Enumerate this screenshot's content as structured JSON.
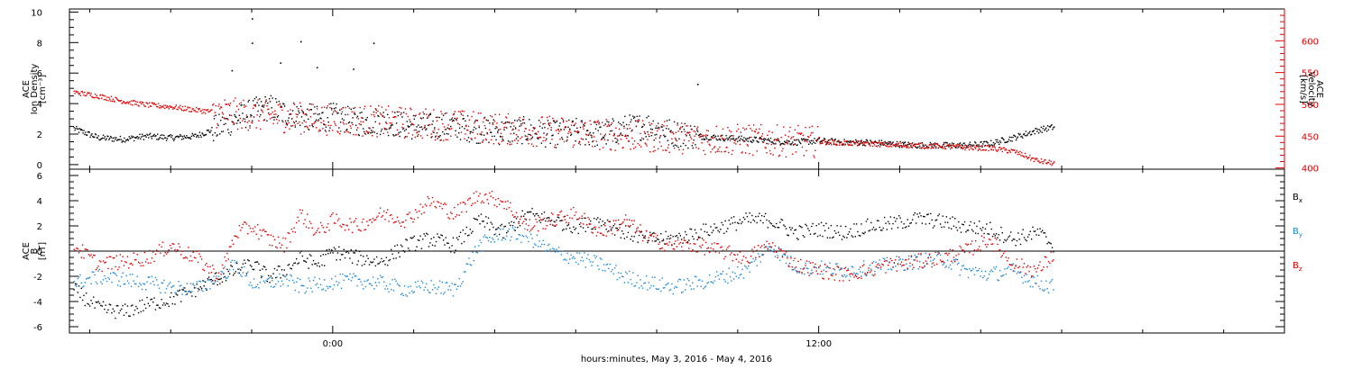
{
  "xlabel": "hours:minutes, May  3, 2016 - May  4, 2016",
  "colors": {
    "black": "#000000",
    "red": "#e00000",
    "blue": "#1e88d8",
    "axis": "#000000"
  },
  "chart_data": [
    {
      "type": "scatter",
      "panel": "top",
      "x_unit": "hours from 2016-05-03 00:00",
      "xlim": [
        -6.5,
        23.5
      ],
      "x_ticks": [
        0,
        12
      ],
      "x_tick_labels": [
        "0:00",
        "12:00"
      ],
      "left_axis": {
        "ylabel_lines": [
          "ACE",
          "Ion Density",
          "[cm⁻³]"
        ],
        "ylim": [
          -0.3,
          10.2
        ],
        "ticks": [
          0,
          2,
          4,
          6,
          8,
          10
        ],
        "color": "#000000"
      },
      "right_axis": {
        "ylabel_lines": [
          "ACE",
          "Velocity",
          "[km/s]"
        ],
        "ylim": [
          398,
          650
        ],
        "ticks": [
          400,
          450,
          500,
          550,
          600
        ],
        "color": "#e00000"
      },
      "series": [
        {
          "color": "#000000",
          "axis": "left",
          "x": [
            -6.4,
            -5.8,
            -5.2,
            -4.6,
            -4.0,
            -3.4,
            -2.8,
            -2.4,
            -2.0,
            -1.6,
            -1.2,
            -0.8,
            -0.4,
            0.0,
            0.6,
            1.2,
            1.8,
            2.4,
            3.0,
            3.6,
            4.2,
            4.8,
            5.4,
            6.0,
            6.6,
            7.2,
            7.8,
            8.4,
            9.0,
            9.6,
            10.2,
            10.8,
            11.4,
            12.0,
            12.6,
            13.2,
            13.8,
            14.4,
            15.0,
            15.6,
            16.2,
            16.8,
            17.4,
            17.8
          ],
          "y": [
            2.4,
            1.8,
            1.7,
            1.9,
            1.8,
            1.9,
            2.5,
            3.0,
            3.5,
            3.8,
            3.4,
            3.3,
            3.0,
            3.2,
            2.8,
            2.9,
            2.6,
            2.5,
            2.6,
            2.3,
            2.2,
            2.3,
            2.0,
            2.2,
            2.0,
            2.4,
            2.6,
            2.1,
            1.9,
            1.8,
            1.7,
            1.6,
            1.5,
            1.6,
            1.5,
            1.5,
            1.4,
            1.3,
            1.3,
            1.3,
            1.4,
            1.8,
            2.3,
            2.5
          ]
        },
        {
          "color": "#e00000",
          "axis": "right",
          "x": [
            -6.4,
            -5.8,
            -5.2,
            -4.6,
            -4.0,
            -3.4,
            -2.8,
            -2.4,
            -2.0,
            -1.6,
            -1.2,
            -0.8,
            -0.4,
            0.0,
            0.6,
            1.2,
            1.8,
            2.4,
            3.0,
            3.6,
            4.2,
            4.8,
            5.4,
            6.0,
            6.6,
            7.2,
            7.8,
            8.4,
            9.0,
            9.6,
            10.2,
            10.8,
            11.4,
            12.0,
            12.6,
            13.2,
            13.8,
            14.4,
            15.0,
            15.6,
            16.2,
            16.8,
            17.4,
            17.8
          ],
          "y": [
            520,
            514,
            506,
            500,
            497,
            492,
            488,
            486,
            484,
            483,
            481,
            479,
            478,
            477,
            476,
            474,
            472,
            470,
            468,
            465,
            462,
            460,
            458,
            456,
            454,
            452,
            450,
            449,
            447,
            446,
            445,
            444,
            443,
            442,
            440,
            439,
            437,
            436,
            435,
            433,
            432,
            427,
            412,
            408
          ]
        }
      ],
      "spikes": [
        {
          "x": -2.0,
          "y": 9.6
        },
        {
          "x": -2.0,
          "y": 8.0
        },
        {
          "x": -0.8,
          "y": 8.1
        },
        {
          "x": 1.0,
          "y": 8.0
        },
        {
          "x": -2.5,
          "y": 6.2
        },
        {
          "x": -1.3,
          "y": 6.7
        },
        {
          "x": -0.4,
          "y": 6.4
        },
        {
          "x": 0.5,
          "y": 6.3
        },
        {
          "x": 9.0,
          "y": 5.3
        }
      ]
    },
    {
      "type": "scatter",
      "panel": "bottom",
      "x_unit": "hours from 2016-05-03 00:00",
      "xlim": [
        -6.5,
        23.5
      ],
      "x_ticks": [
        0,
        12
      ],
      "x_tick_labels": [
        "0:00",
        "12:00"
      ],
      "ylabel_lines": [
        "ACE",
        "B",
        "[nT]"
      ],
      "ylim": [
        -6.5,
        6.5
      ],
      "ticks": [
        -6,
        -4,
        -2,
        0,
        2,
        4,
        6
      ],
      "zero_line": true,
      "legend": [
        {
          "label": "B",
          "sub": "x",
          "color": "#000000"
        },
        {
          "label": "B",
          "sub": "y",
          "color": "#1e88d8"
        },
        {
          "label": "B",
          "sub": "z",
          "color": "#e00000"
        }
      ],
      "series": [
        {
          "color": "#000000",
          "x": [
            -6.4,
            -5.8,
            -5.2,
            -4.6,
            -4.0,
            -3.4,
            -2.8,
            -2.4,
            -2.0,
            -1.6,
            -1.2,
            -0.8,
            -0.4,
            0.0,
            0.6,
            1.2,
            1.8,
            2.4,
            3.0,
            3.6,
            4.2,
            4.8,
            5.4,
            6.0,
            6.6,
            7.2,
            7.8,
            8.4,
            9.0,
            9.6,
            10.2,
            10.8,
            11.4,
            12.0,
            12.6,
            13.2,
            13.8,
            14.4,
            15.0,
            15.6,
            16.2,
            16.8,
            17.4,
            17.8
          ],
          "y": [
            -3.0,
            -4.5,
            -4.8,
            -4.2,
            -3.8,
            -3.0,
            -2.0,
            -1.5,
            -1.0,
            -2.0,
            -1.5,
            -0.5,
            -1.0,
            0.0,
            -0.5,
            -0.8,
            0.5,
            1.0,
            0.5,
            2.5,
            1.5,
            3.0,
            2.5,
            2.0,
            2.5,
            1.5,
            1.0,
            1.0,
            1.5,
            2.0,
            2.5,
            2.5,
            1.5,
            1.8,
            1.5,
            2.0,
            2.2,
            2.6,
            2.4,
            2.0,
            1.8,
            1.0,
            1.5,
            0.5
          ]
        },
        {
          "color": "#1e88d8",
          "x": [
            -6.4,
            -5.8,
            -5.2,
            -4.6,
            -4.0,
            -3.4,
            -2.8,
            -2.4,
            -2.0,
            -1.6,
            -1.2,
            -0.8,
            -0.4,
            0.0,
            0.6,
            1.2,
            1.8,
            2.4,
            3.0,
            3.6,
            4.2,
            4.8,
            5.4,
            6.0,
            6.6,
            7.2,
            7.8,
            8.4,
            9.0,
            9.6,
            10.2,
            10.8,
            11.4,
            12.0,
            12.6,
            13.2,
            13.8,
            14.4,
            15.0,
            15.6,
            16.2,
            16.8,
            17.4,
            17.8
          ],
          "y": [
            -2.5,
            -2.0,
            -2.2,
            -2.5,
            -2.8,
            -3.0,
            -2.0,
            -1.0,
            -2.5,
            -2.5,
            -2.2,
            -2.8,
            -2.6,
            -2.4,
            -2.3,
            -2.5,
            -3.0,
            -2.8,
            -3.0,
            0.5,
            1.5,
            1.2,
            0.0,
            -0.5,
            -1.0,
            -2.0,
            -2.5,
            -2.8,
            -2.5,
            -2.0,
            -1.5,
            0.5,
            -1.2,
            -1.3,
            -1.5,
            -1.3,
            -1.0,
            -0.8,
            -0.5,
            -1.5,
            -1.8,
            -1.5,
            -2.5,
            -2.8
          ]
        },
        {
          "color": "#e00000",
          "x": [
            -6.4,
            -5.8,
            -5.2,
            -4.6,
            -4.0,
            -3.4,
            -2.8,
            -2.4,
            -2.0,
            -1.6,
            -1.2,
            -0.8,
            -0.4,
            0.0,
            0.6,
            1.2,
            1.8,
            2.4,
            3.0,
            3.6,
            4.2,
            4.8,
            5.4,
            6.0,
            6.6,
            7.2,
            7.8,
            8.4,
            9.0,
            9.6,
            10.2,
            10.8,
            11.4,
            12.0,
            12.6,
            13.2,
            13.8,
            14.4,
            15.0,
            15.6,
            16.2,
            16.8,
            17.4,
            17.8
          ],
          "y": [
            0.5,
            -1.0,
            -0.8,
            -0.5,
            0.5,
            -0.5,
            -2.0,
            1.5,
            2.0,
            1.0,
            0.5,
            3.0,
            1.5,
            2.5,
            2.0,
            3.0,
            2.5,
            4.0,
            3.0,
            4.5,
            4.0,
            2.0,
            2.5,
            3.0,
            1.5,
            2.5,
            1.0,
            0.5,
            0.5,
            0.0,
            -0.5,
            0.5,
            -1.0,
            -1.5,
            -1.8,
            -1.5,
            -1.0,
            -0.8,
            -0.5,
            0.0,
            1.0,
            -1.0,
            -1.5,
            -0.2
          ]
        }
      ]
    }
  ]
}
